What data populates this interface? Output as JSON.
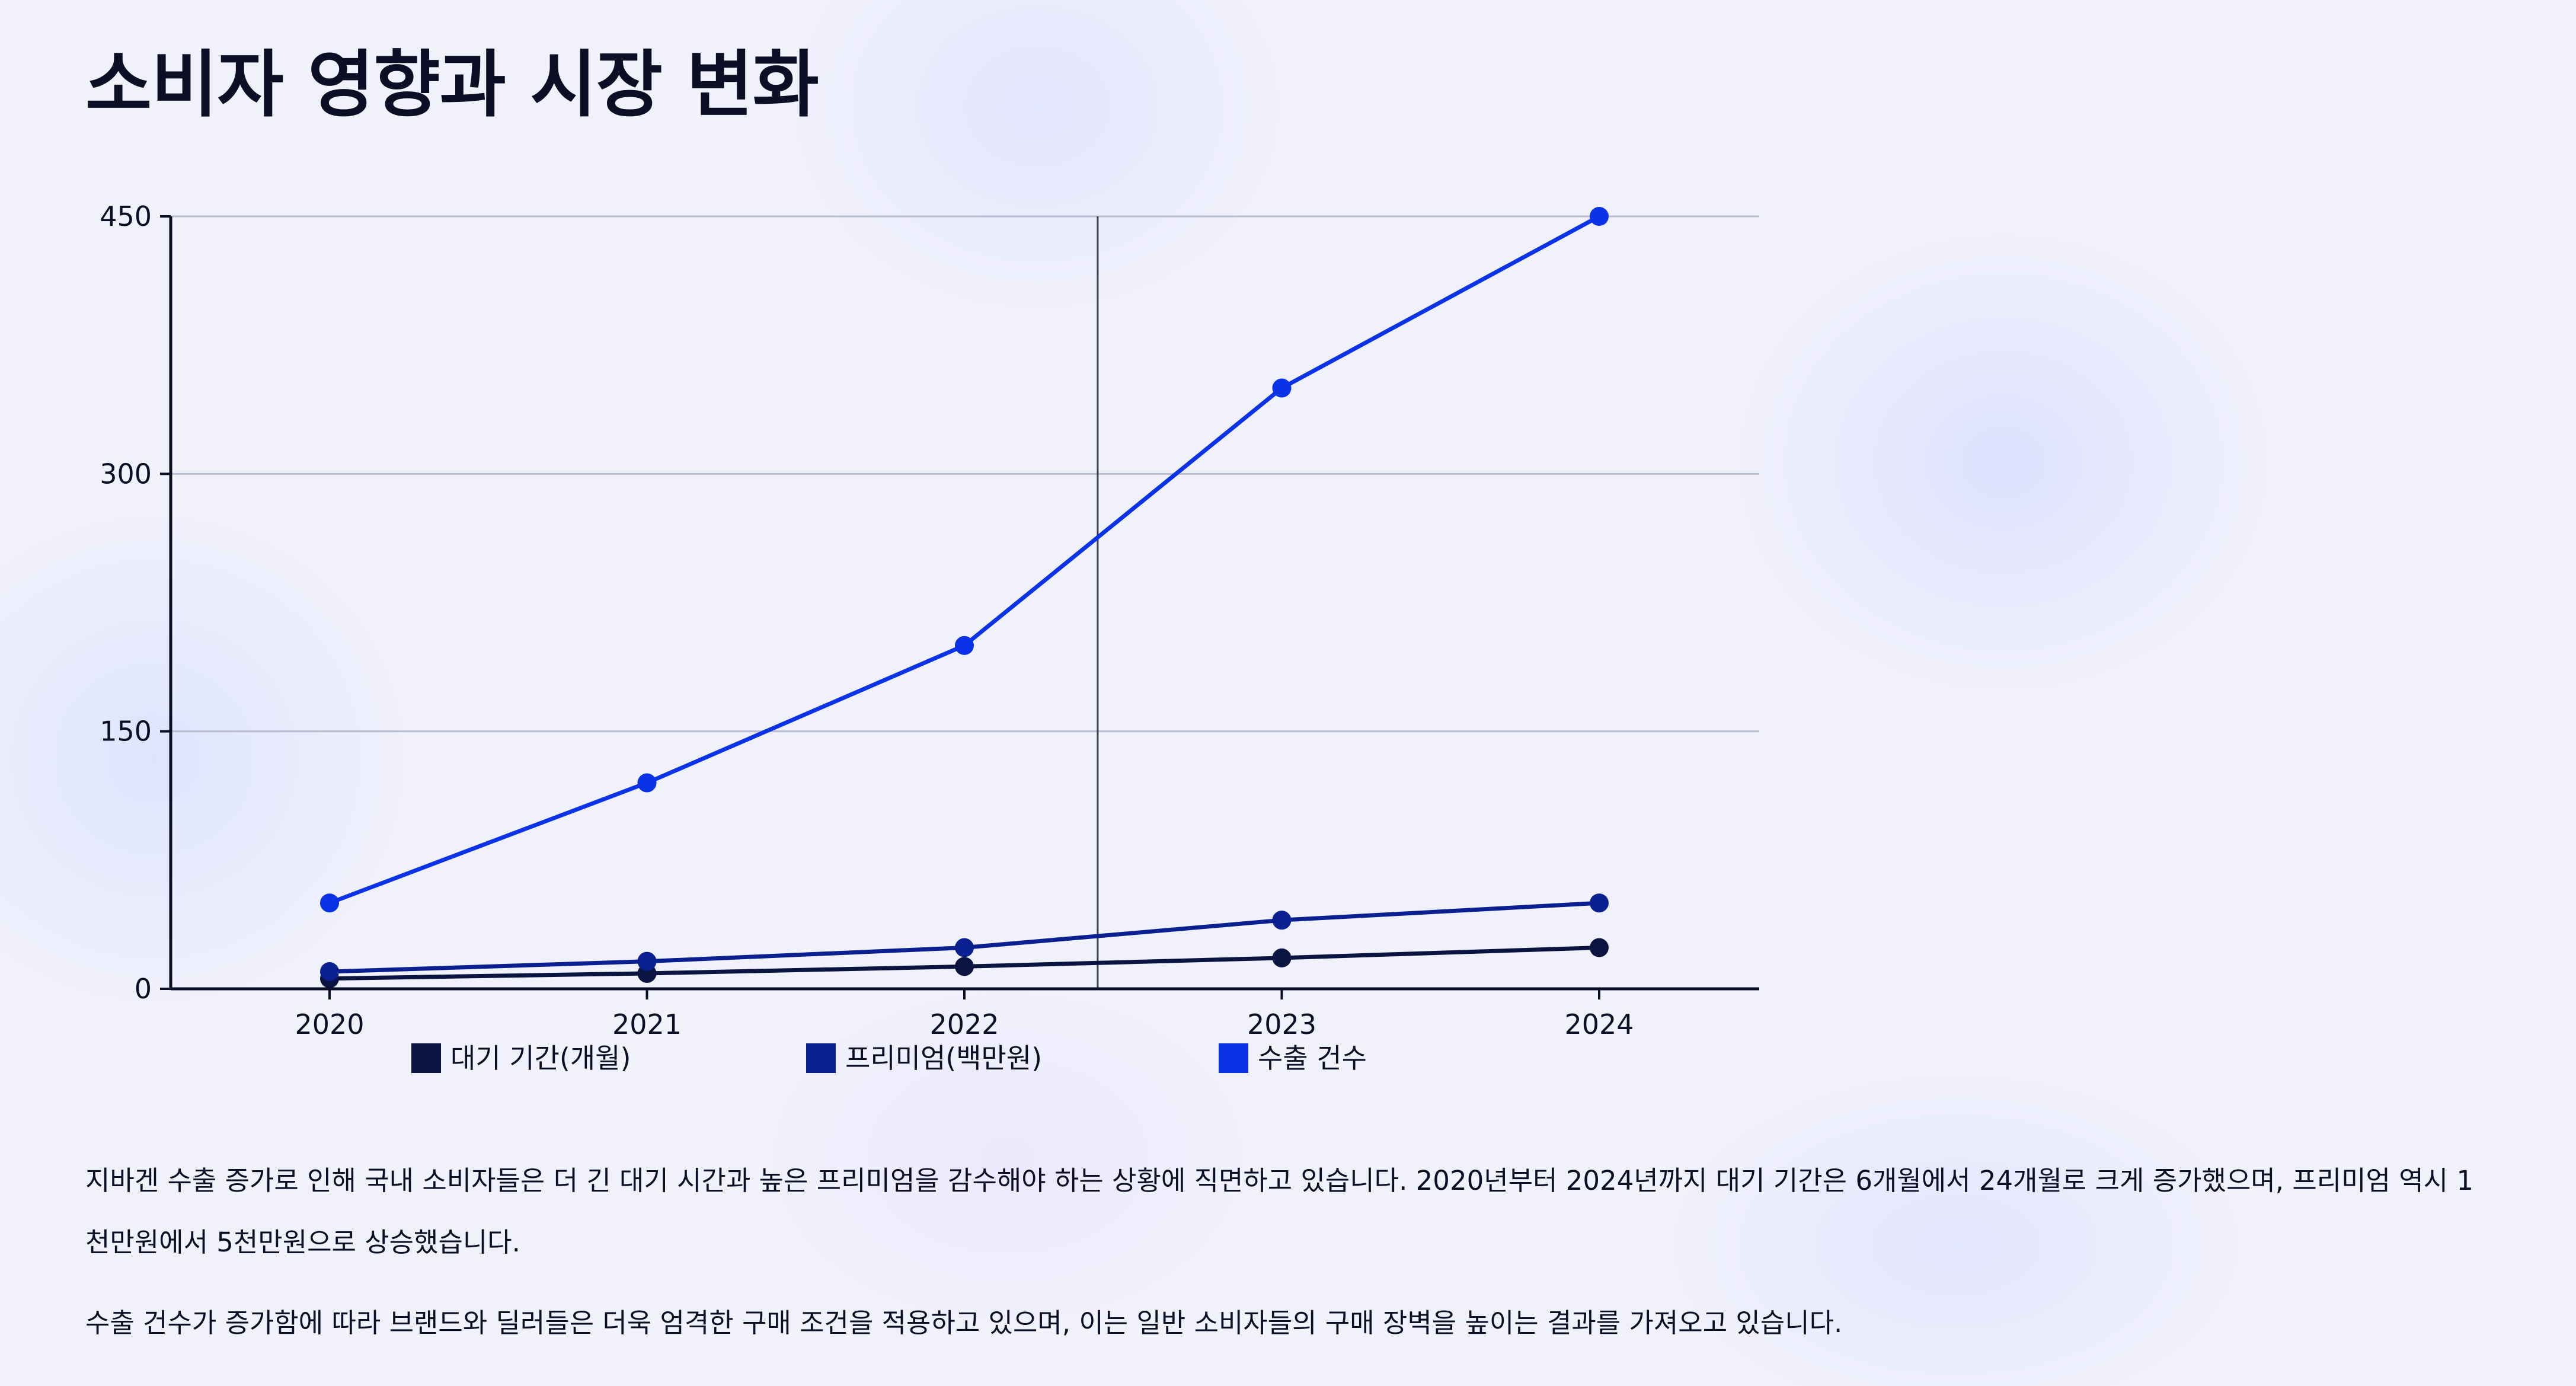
{
  "header": {
    "title": "소비자 영향과 시장 변화"
  },
  "chart_data": {
    "type": "line",
    "x": [
      "2020",
      "2021",
      "2022",
      "2023",
      "2024"
    ],
    "yticks": [
      0,
      150,
      300,
      450
    ],
    "ylim": [
      0,
      450
    ],
    "grid": true,
    "legend_placement": "bottom",
    "vertical_marker_x": 2022.42,
    "series": [
      {
        "name": "대기 기간(개월)",
        "values": [
          6,
          9,
          13,
          18,
          24
        ],
        "color": "#0a1440"
      },
      {
        "name": "프리미엄(백만원)",
        "values": [
          10,
          16,
          24,
          40,
          50
        ],
        "color": "#0a2090"
      },
      {
        "name": "수출 건수",
        "values": [
          50,
          120,
          200,
          350,
          450
        ],
        "color": "#0a32e6"
      }
    ]
  },
  "text": {
    "paragraphs": [
      "지바겐 수출 증가로 인해 국내 소비자들은 더 긴 대기 시간과 높은 프리미엄을 감수해야 하는 상황에 직면하고 있습니다. 2020년부터 2024년까지 대기 기간은 6개월에서 24개월로 크게 증가했으며, 프리미엄 역시 1천만원에서 5천만원으로 상승했습니다.",
      "수출 건수가 증가함에 따라 브랜드와 딜러들은 더욱 엄격한 구매 조건을 적용하고 있으며, 이는 일반 소비자들의 구매 장벽을 높이는 결과를 가져오고 있습니다."
    ]
  }
}
